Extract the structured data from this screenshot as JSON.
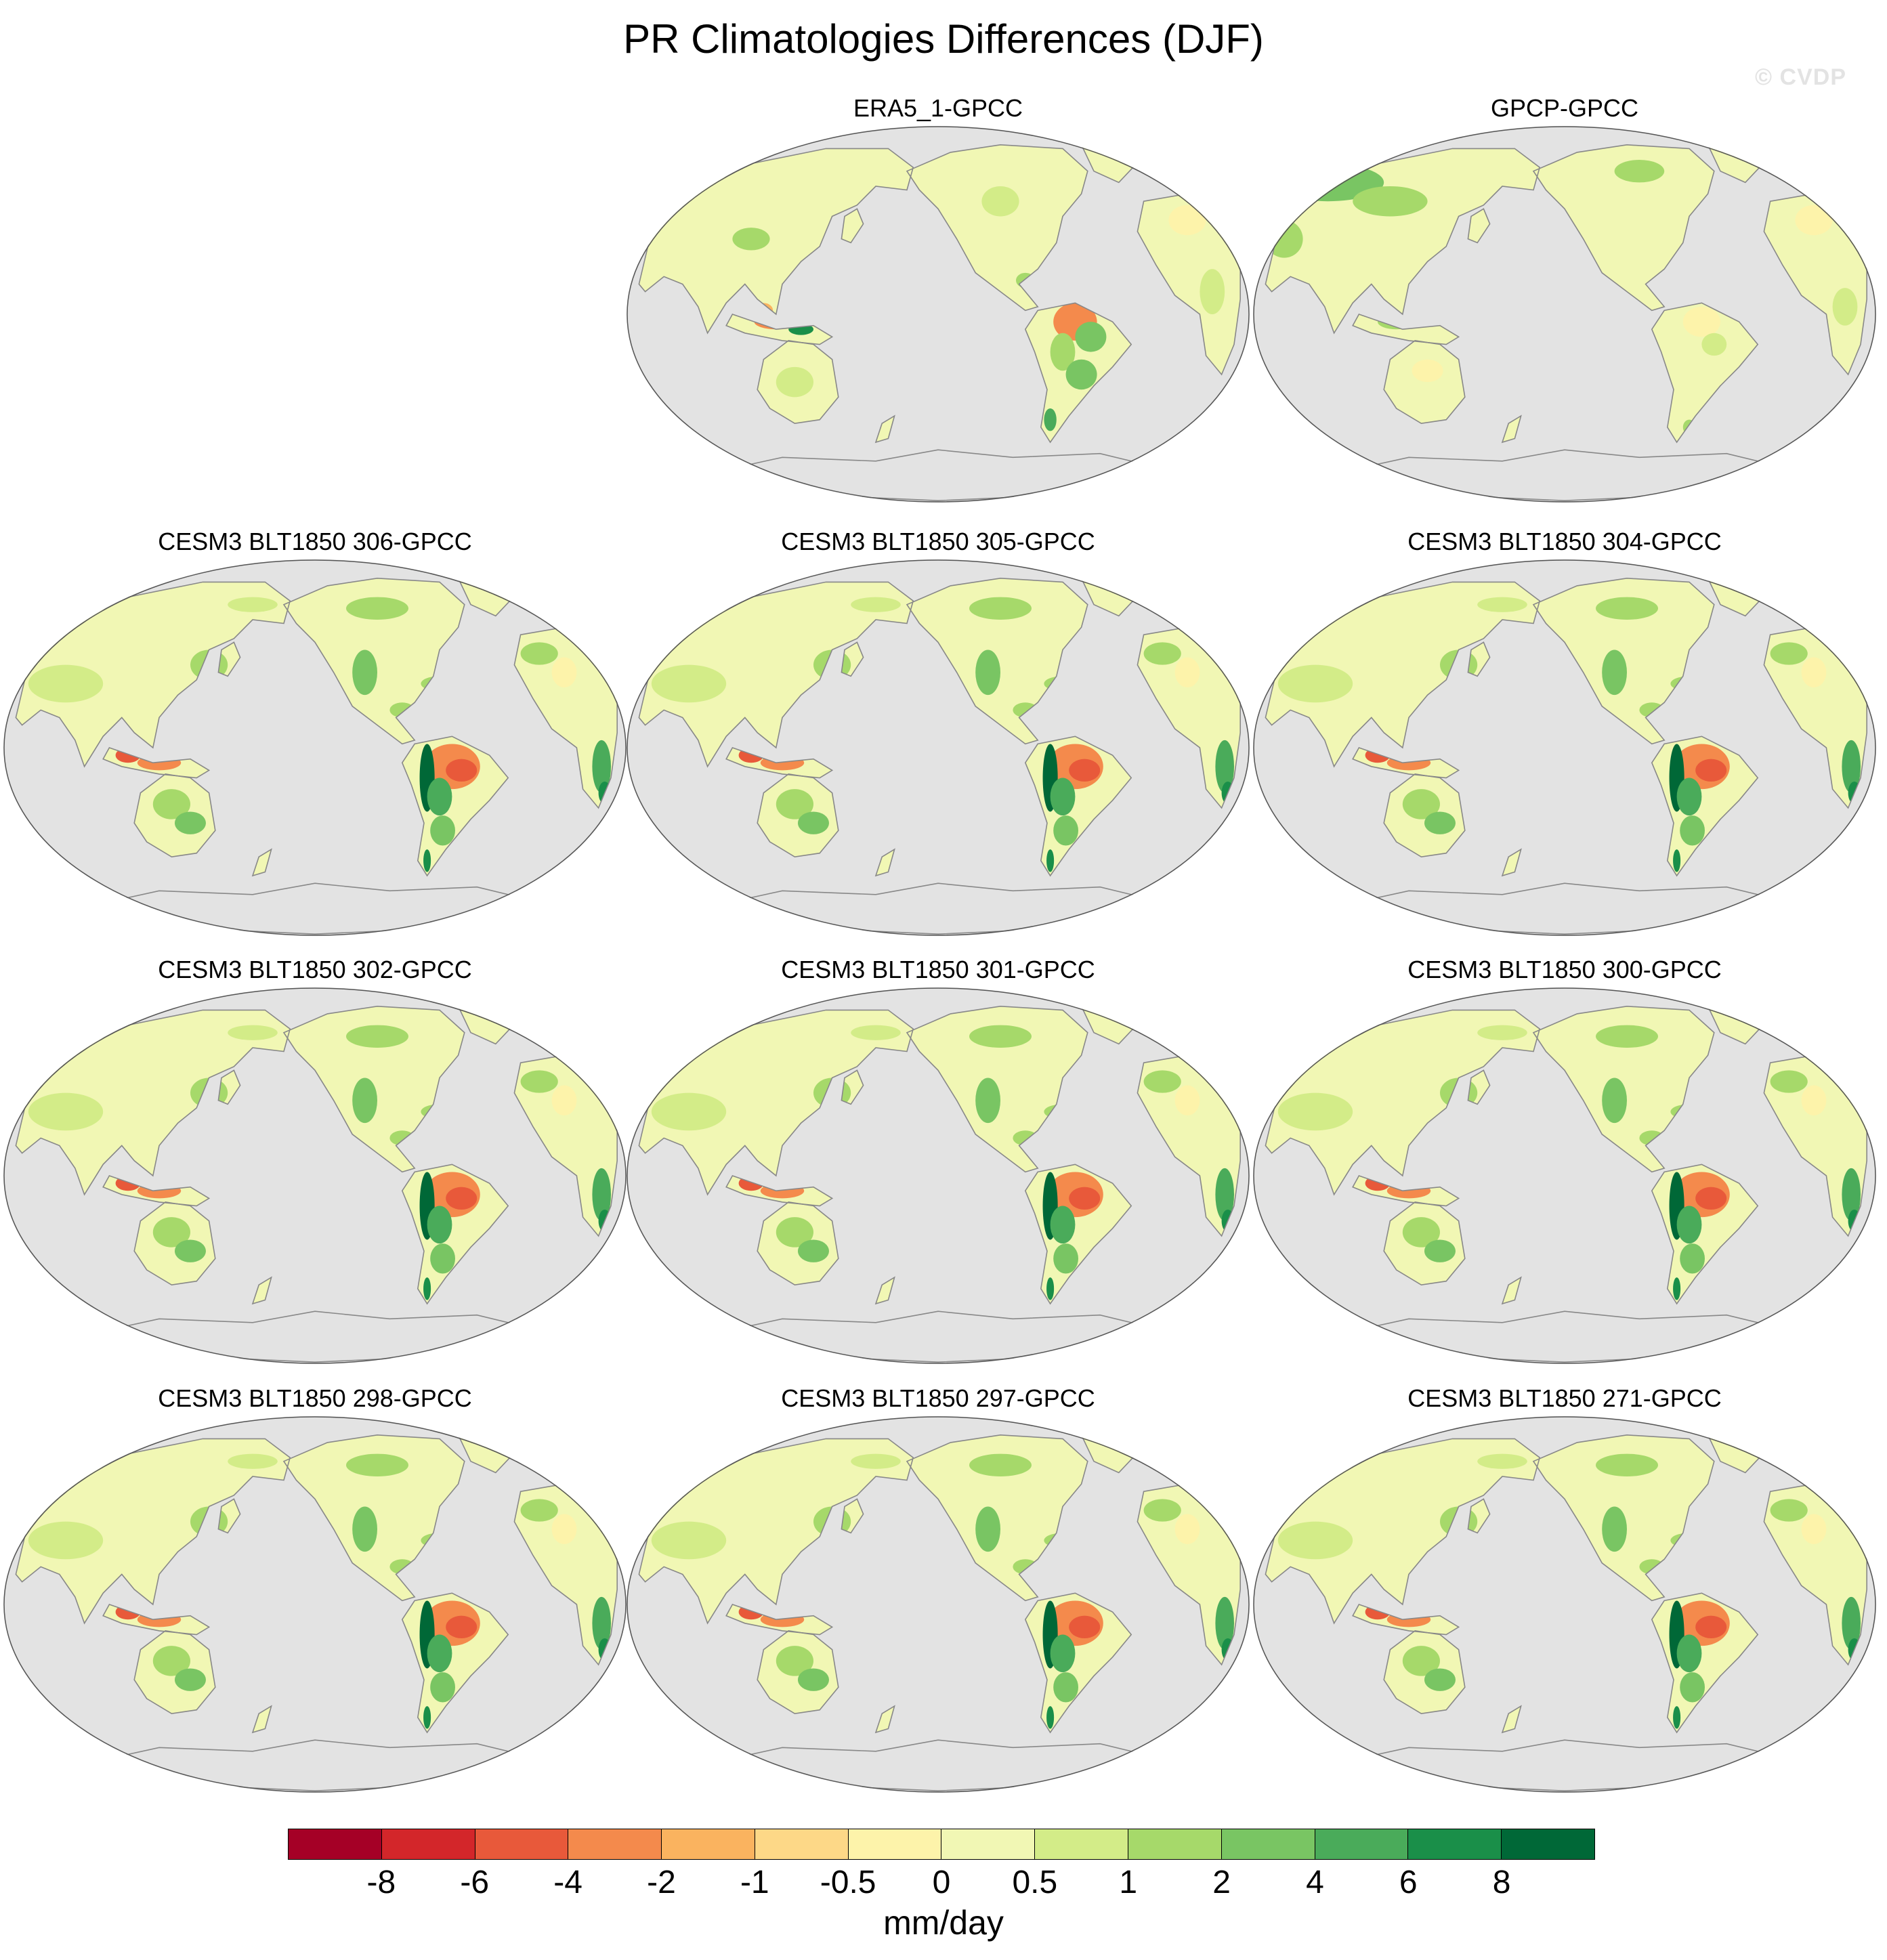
{
  "figure": {
    "title": "PR Climatologies Differences (DJF)",
    "watermark": "© CVDP"
  },
  "panels": [
    {
      "title": "ERA5_1-GPCC",
      "profile": "era5"
    },
    {
      "title": "GPCP-GPCC",
      "profile": "gpcp"
    },
    {
      "title": "CESM3 BLT1850 306-GPCC",
      "profile": "model"
    },
    {
      "title": "CESM3 BLT1850 305-GPCC",
      "profile": "model"
    },
    {
      "title": "CESM3 BLT1850 304-GPCC",
      "profile": "model"
    },
    {
      "title": "CESM3 BLT1850 302-GPCC",
      "profile": "model"
    },
    {
      "title": "CESM3 BLT1850 301-GPCC",
      "profile": "model"
    },
    {
      "title": "CESM3 BLT1850 300-GPCC",
      "profile": "model"
    },
    {
      "title": "CESM3 BLT1850 298-GPCC",
      "profile": "model"
    },
    {
      "title": "CESM3 BLT1850 297-GPCC",
      "profile": "model"
    },
    {
      "title": "CESM3 BLT1850 271-GPCC",
      "profile": "model"
    }
  ],
  "colorbar": {
    "units": "mm/day",
    "tick_labels": [
      "-8",
      "-6",
      "-4",
      "-2",
      "-1",
      "-0.5",
      "0",
      "0.5",
      "1",
      "2",
      "4",
      "6",
      "8"
    ],
    "colors": [
      "#a50026",
      "#d3262a",
      "#e8593a",
      "#f48a4c",
      "#fab35f",
      "#fdd887",
      "#fdf3aa",
      "#f1f7b4",
      "#d3ec88",
      "#a6d96a",
      "#79c563",
      "#4aab5a",
      "#1a8f49",
      "#006837"
    ]
  },
  "colors": {
    "ocean": "#e3e3e3",
    "coast": "#888888"
  }
}
